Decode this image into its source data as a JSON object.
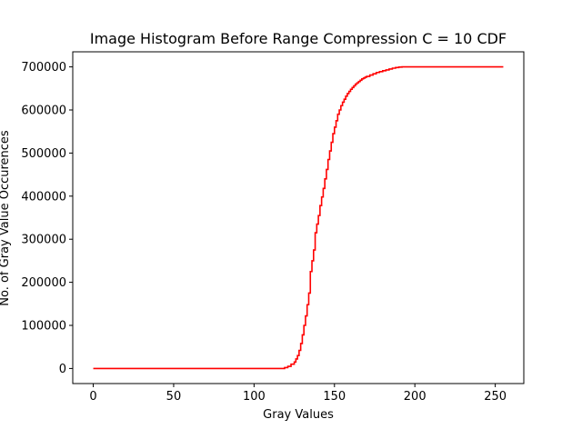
{
  "chart_data": {
    "type": "line",
    "title": "Image Histogram Before Range Compression C = 10 CDF",
    "xlabel": "Gray Values",
    "ylabel": "No. of Gray Value Occurences",
    "xlim": [
      -12.75,
      267.75
    ],
    "ylim": [
      -35000,
      735000
    ],
    "xticks": [
      0,
      50,
      100,
      150,
      200,
      250
    ],
    "yticks": [
      0,
      100000,
      200000,
      300000,
      400000,
      500000,
      600000,
      700000
    ],
    "xtick_labels": [
      "0",
      "50",
      "100",
      "150",
      "200",
      "250"
    ],
    "ytick_labels": [
      "0",
      "100000",
      "200000",
      "300000",
      "400000",
      "500000",
      "600000",
      "700000"
    ],
    "grid": false,
    "legend": "none",
    "line_color": "#ff0000",
    "step": true,
    "series": [
      {
        "x": [
          0,
          117,
          119,
          121,
          123,
          125,
          126,
          127,
          128,
          129,
          130,
          131,
          132,
          133,
          134,
          135,
          136,
          137,
          138,
          139,
          140,
          141,
          142,
          143,
          144,
          145,
          146,
          147,
          148,
          149,
          150,
          151,
          152,
          153,
          154,
          155,
          156,
          157,
          158,
          159,
          160,
          161,
          162,
          163,
          164,
          165,
          166,
          167,
          168,
          169,
          170,
          172,
          174,
          176,
          178,
          180,
          182,
          184,
          186,
          188,
          190,
          192,
          194,
          196,
          198,
          255
        ],
        "y": [
          0,
          0,
          2000,
          5000,
          10000,
          15000,
          22000,
          30000,
          42000,
          58000,
          78000,
          100000,
          122000,
          148000,
          175000,
          225000,
          250000,
          275000,
          315000,
          335000,
          355000,
          378000,
          398000,
          418000,
          440000,
          462000,
          485000,
          505000,
          525000,
          545000,
          560000,
          575000,
          590000,
          600000,
          610000,
          618000,
          625000,
          632000,
          638000,
          643000,
          648000,
          652000,
          656000,
          660000,
          663000,
          666000,
          669000,
          672000,
          674000,
          676000,
          678000,
          681000,
          684000,
          687000,
          689000,
          691000,
          693000,
          695000,
          697000,
          698500,
          699500,
          700000,
          700000,
          700000,
          700000,
          700000
        ]
      }
    ]
  }
}
